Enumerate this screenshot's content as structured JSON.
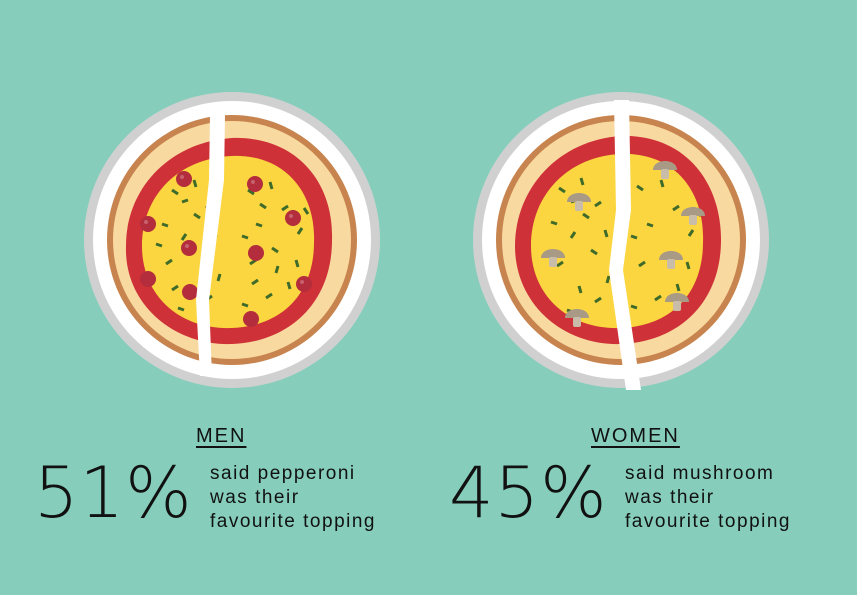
{
  "colors": {
    "background": "#86cebb",
    "plate_rim": "#d0d0d0",
    "plate": "#ffffff",
    "crust": "#c7844e",
    "dough": "#f8d9a0",
    "sauce": "#cf3138",
    "cheese": "#fbd640",
    "herb": "#3f6b2a",
    "pepperoni": "#b32d3c",
    "mushroom": "#a89a85"
  },
  "men": {
    "heading": "MEN",
    "percent": "51%",
    "caption_line1": "said pepperoni",
    "caption_line2": "was their",
    "caption_line3": "favourite topping",
    "topping_icon": "pepperoni-icon"
  },
  "women": {
    "heading": "WOMEN",
    "percent": "45%",
    "caption_line1": "said mushroom",
    "caption_line2": "was their",
    "caption_line3": "favourite topping",
    "topping_icon": "mushroom-icon"
  }
}
